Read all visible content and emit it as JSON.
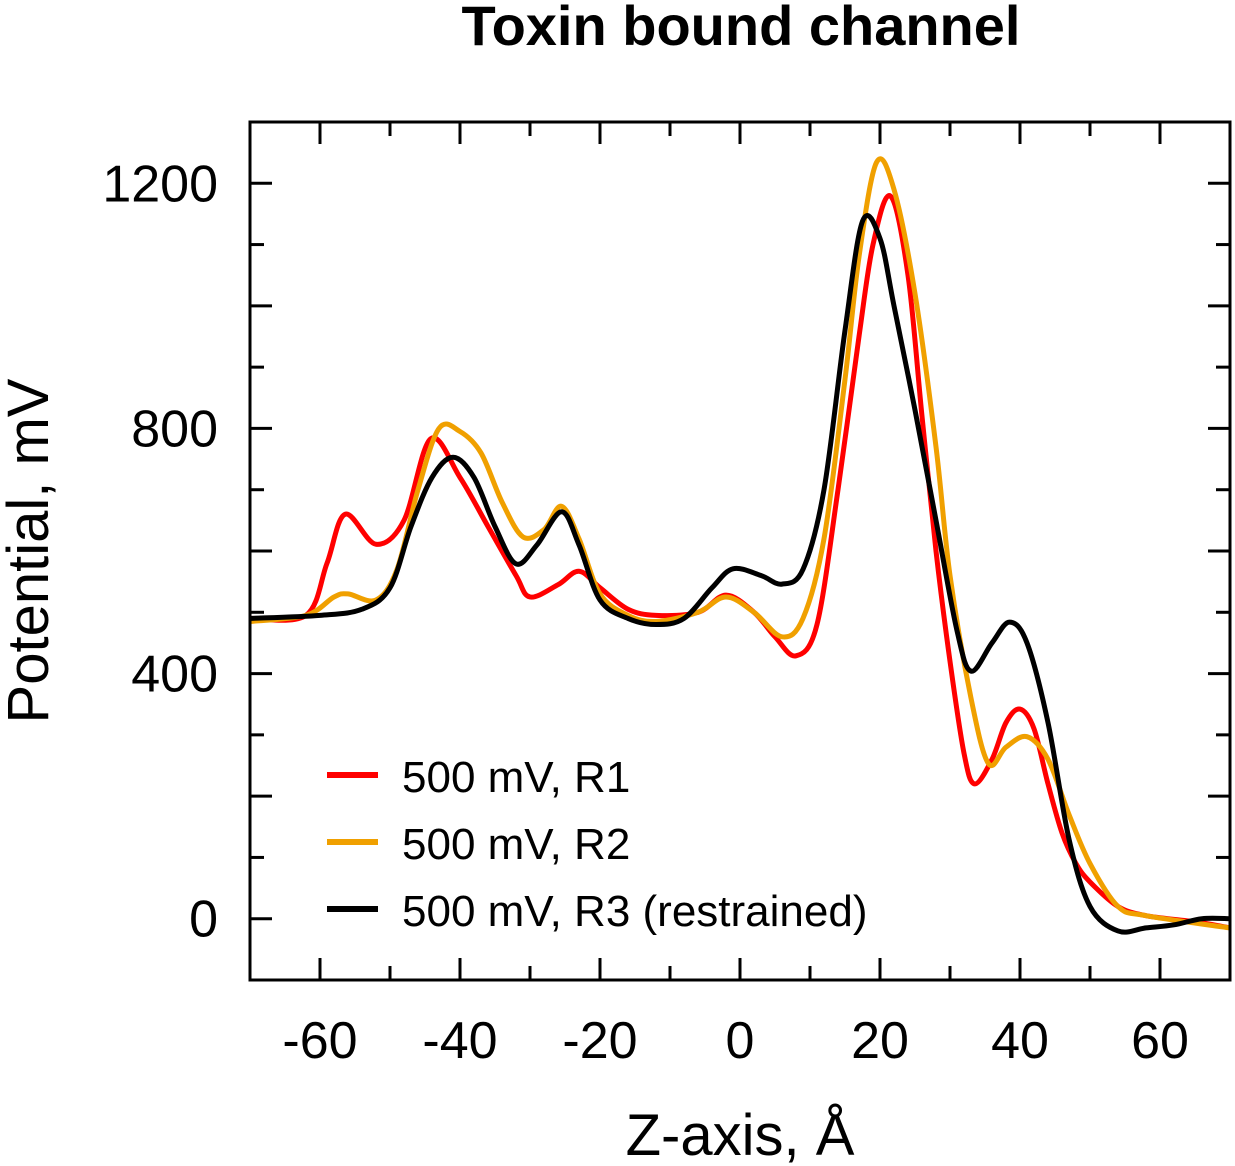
{
  "chart_data": {
    "type": "line",
    "title": "Toxin bound channel",
    "xlabel": "Z-axis, Å",
    "ylabel": "Potential, mV",
    "xlim": [
      -70,
      70
    ],
    "ylim": [
      -100,
      1300
    ],
    "x_ticks": [
      -60,
      -40,
      -20,
      0,
      20,
      40,
      60
    ],
    "y_ticks": [
      0,
      400,
      800,
      1200
    ],
    "x_minor_step": 10,
    "y_minor_step": 100,
    "grid": false,
    "legend_position": "bottom-left",
    "series": [
      {
        "name": "500 mV, R1",
        "color": "#ff0000",
        "points": [
          [
            -70,
            490
          ],
          [
            -62,
            495
          ],
          [
            -59,
            580
          ],
          [
            -56.4,
            660
          ],
          [
            -52,
            611
          ],
          [
            -48,
            650
          ],
          [
            -44.2,
            783
          ],
          [
            -40,
            720
          ],
          [
            -36,
            640
          ],
          [
            -32,
            560
          ],
          [
            -30,
            525
          ],
          [
            -26,
            545
          ],
          [
            -23,
            567
          ],
          [
            -20,
            540
          ],
          [
            -16,
            505
          ],
          [
            -12,
            495
          ],
          [
            -6,
            500
          ],
          [
            -2,
            528
          ],
          [
            2,
            500
          ],
          [
            5,
            460
          ],
          [
            8,
            429
          ],
          [
            11,
            480
          ],
          [
            14,
            700
          ],
          [
            17,
            950
          ],
          [
            19,
            1100
          ],
          [
            21.5,
            1179
          ],
          [
            24,
            1050
          ],
          [
            26,
            820
          ],
          [
            28,
            600
          ],
          [
            30,
            420
          ],
          [
            32,
            270
          ],
          [
            33.5,
            220
          ],
          [
            36,
            260
          ],
          [
            38,
            320
          ],
          [
            40,
            342
          ],
          [
            42,
            310
          ],
          [
            44,
            220
          ],
          [
            46,
            140
          ],
          [
            48,
            90
          ],
          [
            50,
            60
          ],
          [
            54,
            20
          ],
          [
            58,
            5
          ],
          [
            65,
            -5
          ],
          [
            70,
            -15
          ]
        ]
      },
      {
        "name": "500 mV, R2",
        "color": "#f0a000",
        "points": [
          [
            -70,
            485
          ],
          [
            -62,
            495
          ],
          [
            -58,
            525
          ],
          [
            -56,
            530
          ],
          [
            -52,
            520
          ],
          [
            -49,
            570
          ],
          [
            -46,
            700
          ],
          [
            -43,
            800
          ],
          [
            -40,
            795
          ],
          [
            -37,
            760
          ],
          [
            -34,
            680
          ],
          [
            -31,
            623
          ],
          [
            -28,
            635
          ],
          [
            -25.5,
            673
          ],
          [
            -23,
            620
          ],
          [
            -20,
            530
          ],
          [
            -16,
            495
          ],
          [
            -12,
            485
          ],
          [
            -6,
            500
          ],
          [
            -2,
            525
          ],
          [
            2,
            500
          ],
          [
            6,
            460
          ],
          [
            9,
            490
          ],
          [
            12,
            620
          ],
          [
            15,
            880
          ],
          [
            17,
            1080
          ],
          [
            19.5,
            1234
          ],
          [
            22,
            1190
          ],
          [
            25,
            1020
          ],
          [
            28,
            770
          ],
          [
            30,
            560
          ],
          [
            33,
            360
          ],
          [
            35.5,
            253
          ],
          [
            38,
            280
          ],
          [
            41,
            297
          ],
          [
            44,
            260
          ],
          [
            47,
            170
          ],
          [
            50,
            90
          ],
          [
            54,
            20
          ],
          [
            58,
            5
          ],
          [
            70,
            -15
          ]
        ]
      },
      {
        "name": "500 mV, R3 (restrained)",
        "color": "#000000",
        "points": [
          [
            -70,
            490
          ],
          [
            -60,
            495
          ],
          [
            -54,
            505
          ],
          [
            -50,
            540
          ],
          [
            -47,
            640
          ],
          [
            -44,
            720
          ],
          [
            -41,
            753
          ],
          [
            -38,
            720
          ],
          [
            -35,
            640
          ],
          [
            -32,
            579
          ],
          [
            -29,
            610
          ],
          [
            -25.5,
            664
          ],
          [
            -23,
            610
          ],
          [
            -20,
            520
          ],
          [
            -16,
            490
          ],
          [
            -12,
            480
          ],
          [
            -8,
            490
          ],
          [
            -4,
            540
          ],
          [
            -1,
            571
          ],
          [
            3,
            560
          ],
          [
            6,
            546
          ],
          [
            9,
            570
          ],
          [
            12,
            700
          ],
          [
            15,
            960
          ],
          [
            17.5,
            1138
          ],
          [
            20,
            1110
          ],
          [
            22,
            1000
          ],
          [
            25,
            830
          ],
          [
            28,
            650
          ],
          [
            31,
            470
          ],
          [
            33,
            404
          ],
          [
            36,
            450
          ],
          [
            38.5,
            484
          ],
          [
            41,
            450
          ],
          [
            44,
            320
          ],
          [
            47,
            130
          ],
          [
            50,
            20
          ],
          [
            54,
            -20
          ],
          [
            58,
            -15
          ],
          [
            62,
            -10
          ],
          [
            66,
            0
          ],
          [
            70,
            0
          ]
        ]
      }
    ]
  }
}
